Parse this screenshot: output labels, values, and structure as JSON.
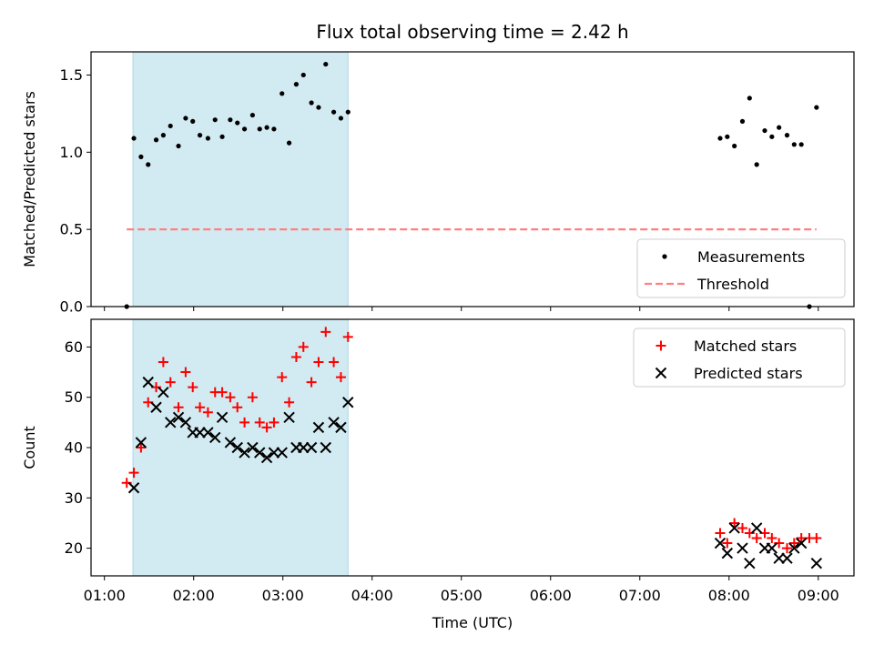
{
  "chart_data": {
    "type": "scatter",
    "title": "Flux total observing time = 2.42 h",
    "x_unit": "hours (UTC)",
    "xlabel": "Time (UTC)",
    "xlim": [
      0.85,
      9.4
    ],
    "x_ticks": [
      1,
      2,
      3,
      4,
      5,
      6,
      7,
      8,
      9
    ],
    "x_tick_labels": [
      "01:00",
      "02:00",
      "03:00",
      "04:00",
      "05:00",
      "06:00",
      "07:00",
      "08:00",
      "09:00"
    ],
    "highlight_span": [
      1.32,
      3.73
    ],
    "highlight_color": "#add8e6",
    "panels": [
      {
        "ylabel": "Matched/Predicted stars",
        "ylim": [
          0,
          1.65
        ],
        "y_ticks": [
          0.0,
          0.5,
          1.0,
          1.5
        ],
        "y_tick_labels": [
          "0.0",
          "0.5",
          "1.0",
          "1.5"
        ],
        "legend_position": "bottom-right",
        "series": [
          {
            "name": "Measurements",
            "marker": "dot",
            "color": "#000000",
            "points": [
              [
                1.25,
                0.0
              ],
              [
                1.33,
                1.09
              ],
              [
                1.41,
                0.97
              ],
              [
                1.49,
                0.92
              ],
              [
                1.58,
                1.08
              ],
              [
                1.66,
                1.11
              ],
              [
                1.74,
                1.17
              ],
              [
                1.83,
                1.04
              ],
              [
                1.91,
                1.22
              ],
              [
                1.99,
                1.2
              ],
              [
                2.07,
                1.11
              ],
              [
                2.16,
                1.09
              ],
              [
                2.24,
                1.21
              ],
              [
                2.32,
                1.1
              ],
              [
                2.41,
                1.21
              ],
              [
                2.49,
                1.19
              ],
              [
                2.57,
                1.15
              ],
              [
                2.66,
                1.24
              ],
              [
                2.74,
                1.15
              ],
              [
                2.82,
                1.16
              ],
              [
                2.9,
                1.15
              ],
              [
                2.99,
                1.38
              ],
              [
                3.07,
                1.06
              ],
              [
                3.15,
                1.44
              ],
              [
                3.23,
                1.5
              ],
              [
                3.32,
                1.32
              ],
              [
                3.4,
                1.29
              ],
              [
                3.48,
                1.57
              ],
              [
                3.57,
                1.26
              ],
              [
                3.65,
                1.22
              ],
              [
                3.73,
                1.26
              ],
              [
                7.9,
                1.09
              ],
              [
                7.98,
                1.1
              ],
              [
                8.06,
                1.04
              ],
              [
                8.15,
                1.2
              ],
              [
                8.23,
                1.35
              ],
              [
                8.31,
                0.92
              ],
              [
                8.4,
                1.14
              ],
              [
                8.48,
                1.1
              ],
              [
                8.56,
                1.16
              ],
              [
                8.65,
                1.11
              ],
              [
                8.73,
                1.05
              ],
              [
                8.81,
                1.05
              ],
              [
                8.9,
                0.0
              ],
              [
                8.98,
                1.29
              ]
            ]
          },
          {
            "name": "Threshold",
            "marker": "dashed-line",
            "color": "#ff8080",
            "points": [
              [
                1.25,
                0.5
              ],
              [
                8.98,
                0.5
              ]
            ]
          }
        ]
      },
      {
        "ylabel": "Count",
        "ylim": [
          14.5,
          65.5
        ],
        "y_ticks": [
          20,
          30,
          40,
          50,
          60
        ],
        "y_tick_labels": [
          "20",
          "30",
          "40",
          "50",
          "60"
        ],
        "legend_position": "top-right",
        "series": [
          {
            "name": "Matched stars",
            "marker": "plus",
            "color": "#ff0000",
            "points": [
              [
                1.25,
                33
              ],
              [
                1.33,
                35
              ],
              [
                1.41,
                40
              ],
              [
                1.49,
                49
              ],
              [
                1.58,
                52
              ],
              [
                1.66,
                57
              ],
              [
                1.74,
                53
              ],
              [
                1.83,
                48
              ],
              [
                1.91,
                55
              ],
              [
                1.99,
                52
              ],
              [
                2.07,
                48
              ],
              [
                2.16,
                47
              ],
              [
                2.24,
                51
              ],
              [
                2.32,
                51
              ],
              [
                2.41,
                50
              ],
              [
                2.49,
                48
              ],
              [
                2.57,
                45
              ],
              [
                2.66,
                50
              ],
              [
                2.74,
                45
              ],
              [
                2.82,
                44
              ],
              [
                2.9,
                45
              ],
              [
                2.99,
                54
              ],
              [
                3.07,
                49
              ],
              [
                3.15,
                58
              ],
              [
                3.23,
                60
              ],
              [
                3.32,
                53
              ],
              [
                3.4,
                57
              ],
              [
                3.48,
                63
              ],
              [
                3.57,
                57
              ],
              [
                3.65,
                54
              ],
              [
                3.73,
                62
              ],
              [
                7.9,
                23
              ],
              [
                7.98,
                21
              ],
              [
                8.06,
                25
              ],
              [
                8.15,
                24
              ],
              [
                8.23,
                23
              ],
              [
                8.31,
                22
              ],
              [
                8.4,
                23
              ],
              [
                8.48,
                22
              ],
              [
                8.56,
                21
              ],
              [
                8.65,
                20
              ],
              [
                8.73,
                21
              ],
              [
                8.81,
                22
              ],
              [
                8.9,
                22
              ],
              [
                8.98,
                22
              ]
            ]
          },
          {
            "name": "Predicted stars",
            "marker": "x",
            "color": "#000000",
            "points": [
              [
                1.33,
                32
              ],
              [
                1.41,
                41
              ],
              [
                1.49,
                53
              ],
              [
                1.58,
                48
              ],
              [
                1.66,
                51
              ],
              [
                1.74,
                45
              ],
              [
                1.83,
                46
              ],
              [
                1.91,
                45
              ],
              [
                1.99,
                43
              ],
              [
                2.07,
                43
              ],
              [
                2.16,
                43
              ],
              [
                2.24,
                42
              ],
              [
                2.32,
                46
              ],
              [
                2.41,
                41
              ],
              [
                2.49,
                40
              ],
              [
                2.57,
                39
              ],
              [
                2.66,
                40
              ],
              [
                2.74,
                39
              ],
              [
                2.82,
                38
              ],
              [
                2.9,
                39
              ],
              [
                2.99,
                39
              ],
              [
                3.07,
                46
              ],
              [
                3.15,
                40
              ],
              [
                3.23,
                40
              ],
              [
                3.32,
                40
              ],
              [
                3.4,
                44
              ],
              [
                3.48,
                40
              ],
              [
                3.57,
                45
              ],
              [
                3.65,
                44
              ],
              [
                3.73,
                49
              ],
              [
                7.9,
                21
              ],
              [
                7.98,
                19
              ],
              [
                8.06,
                24
              ],
              [
                8.15,
                20
              ],
              [
                8.23,
                17
              ],
              [
                8.31,
                24
              ],
              [
                8.4,
                20
              ],
              [
                8.48,
                20
              ],
              [
                8.56,
                18
              ],
              [
                8.65,
                18
              ],
              [
                8.73,
                20
              ],
              [
                8.81,
                21
              ],
              [
                8.98,
                17
              ]
            ]
          }
        ]
      }
    ]
  }
}
